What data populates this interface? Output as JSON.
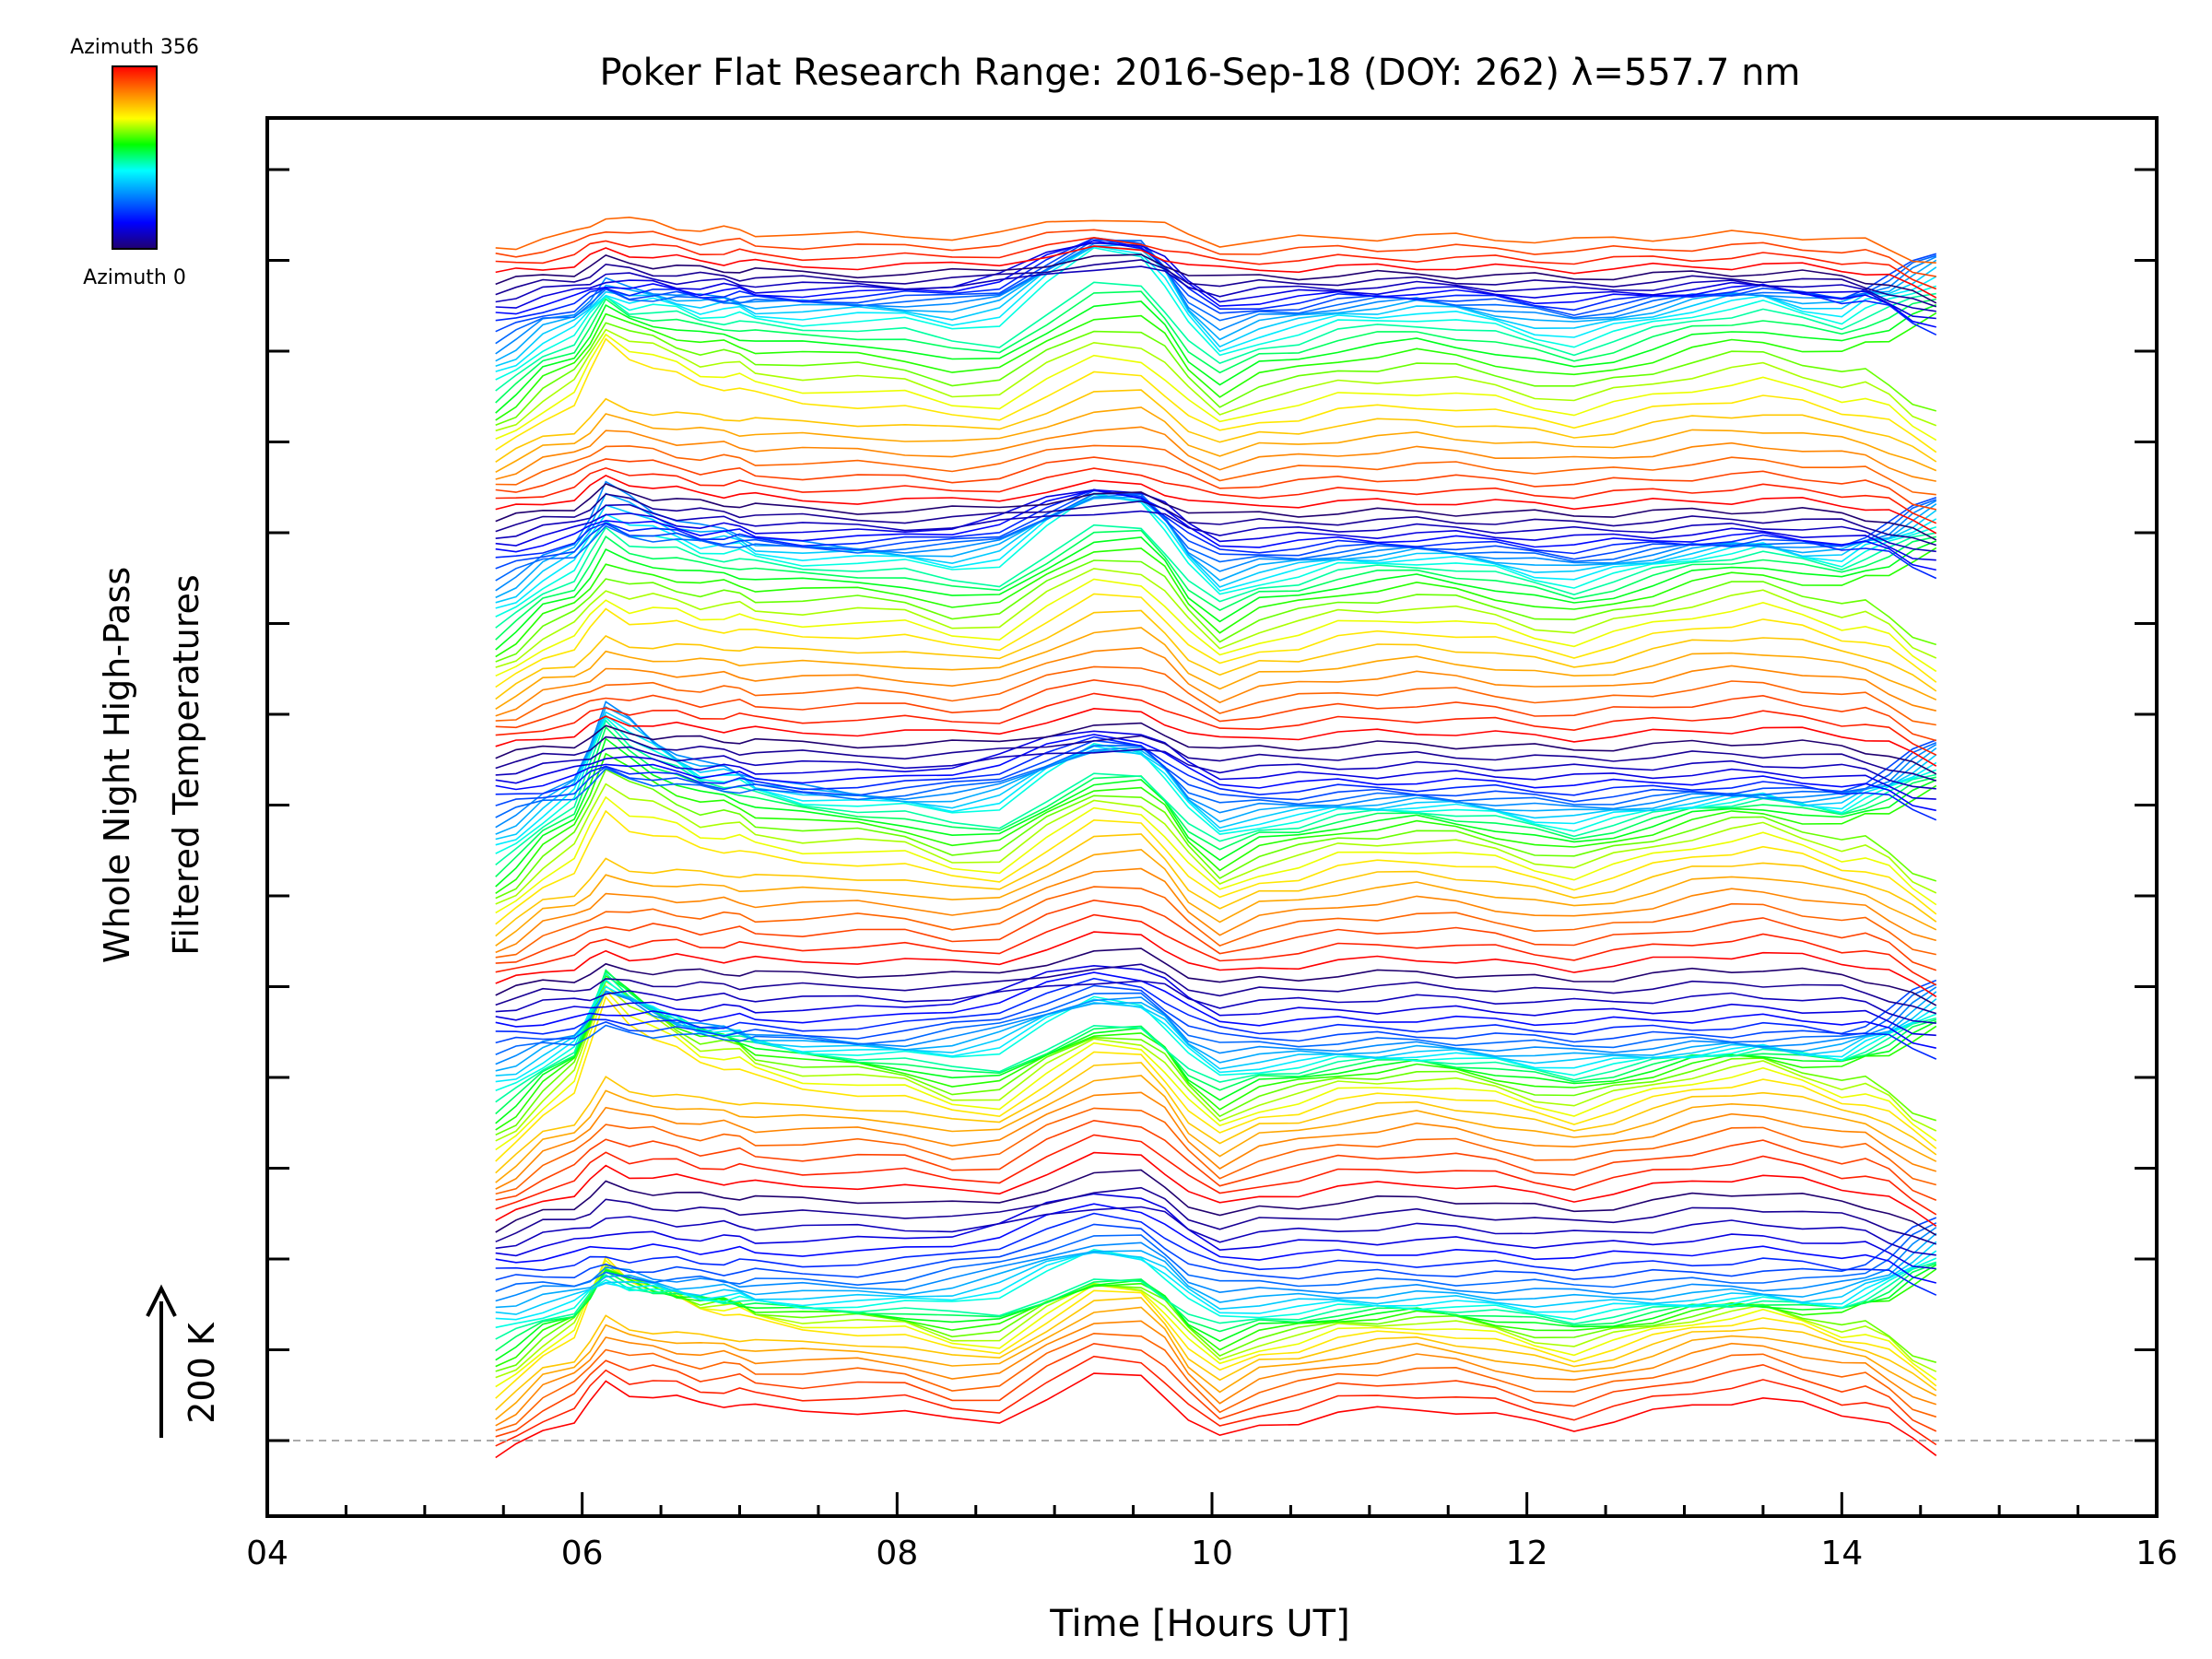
{
  "chart_data": {
    "type": "line",
    "title": "Poker Flat Research Range: 2016-Sep-18 (DOY: 262) λ=557.7 nm",
    "xlabel": "Time [Hours UT]",
    "ylabel_line1": "Whole Night High-Pass",
    "ylabel_line2": "Filtered Temperatures",
    "scale_label": "200 K",
    "colorbar": {
      "top_label": "Azimuth 356",
      "bottom_label": "Azimuth 0",
      "colors": [
        "#ff0000",
        "#ff8000",
        "#ffff00",
        "#00ff00",
        "#00ffff",
        "#0080ff",
        "#0000ff",
        "#20006f"
      ]
    },
    "xlim": [
      4,
      16
    ],
    "x_ticks": [
      "04",
      "06",
      "08",
      "10",
      "12",
      "14",
      "16"
    ],
    "x_tick_values": [
      4,
      6,
      8,
      10,
      12,
      14,
      16
    ],
    "y_offset_step_K": 12.4,
    "n_series": 144,
    "stack_top_offset_K": 1765,
    "grid": false,
    "legend": "colorbar top-left",
    "time_hours": [
      5.45,
      5.58,
      5.75,
      5.95,
      6.05,
      6.15,
      6.3,
      6.45,
      6.6,
      6.75,
      6.9,
      7.0,
      7.1,
      7.4,
      7.75,
      8.05,
      8.35,
      8.65,
      8.95,
      9.25,
      9.55,
      9.7,
      9.85,
      10.05,
      10.3,
      10.55,
      10.8,
      11.05,
      11.3,
      11.55,
      11.8,
      12.05,
      12.3,
      12.55,
      12.8,
      13.05,
      13.3,
      13.5,
      13.75,
      14.0,
      14.15,
      14.3,
      14.45,
      14.6
    ],
    "base_profile_K": [
      0,
      18,
      50,
      62,
      80,
      100,
      88,
      95,
      95,
      90,
      92,
      92,
      88,
      88,
      92,
      88,
      65,
      60,
      100,
      135,
      135,
      110,
      70,
      35,
      65,
      75,
      90,
      95,
      100,
      95,
      85,
      70,
      60,
      75,
      90,
      105,
      115,
      120,
      105,
      90,
      95,
      85,
      70,
      60
    ],
    "feature_6h_K": [
      0,
      5,
      20,
      45,
      90,
      140,
      120,
      90,
      70,
      55,
      50,
      45,
      35,
      20,
      10,
      5,
      0,
      0,
      0,
      0,
      0,
      0,
      0,
      0,
      0,
      0,
      0,
      0,
      0,
      0,
      0,
      0,
      0,
      0,
      0,
      0,
      0,
      0,
      0,
      0,
      0,
      0,
      0,
      0
    ],
    "feature_9h_K": [
      0,
      0,
      0,
      0,
      0,
      0,
      0,
      0,
      0,
      0,
      0,
      0,
      0,
      0,
      0,
      10,
      40,
      70,
      110,
      140,
      130,
      90,
      40,
      10,
      0,
      0,
      0,
      0,
      0,
      0,
      0,
      0,
      0,
      0,
      0,
      0,
      0,
      0,
      0,
      0,
      0,
      0,
      0,
      0
    ],
    "feature_end_K": [
      0,
      0,
      0,
      0,
      0,
      0,
      0,
      0,
      0,
      0,
      0,
      0,
      0,
      0,
      0,
      0,
      0,
      0,
      0,
      0,
      0,
      0,
      0,
      0,
      0,
      0,
      0,
      0,
      0,
      0,
      0,
      0,
      0,
      0,
      0,
      0,
      0,
      0,
      0,
      10,
      30,
      60,
      110,
      150
    ],
    "baseline_K": 0
  }
}
